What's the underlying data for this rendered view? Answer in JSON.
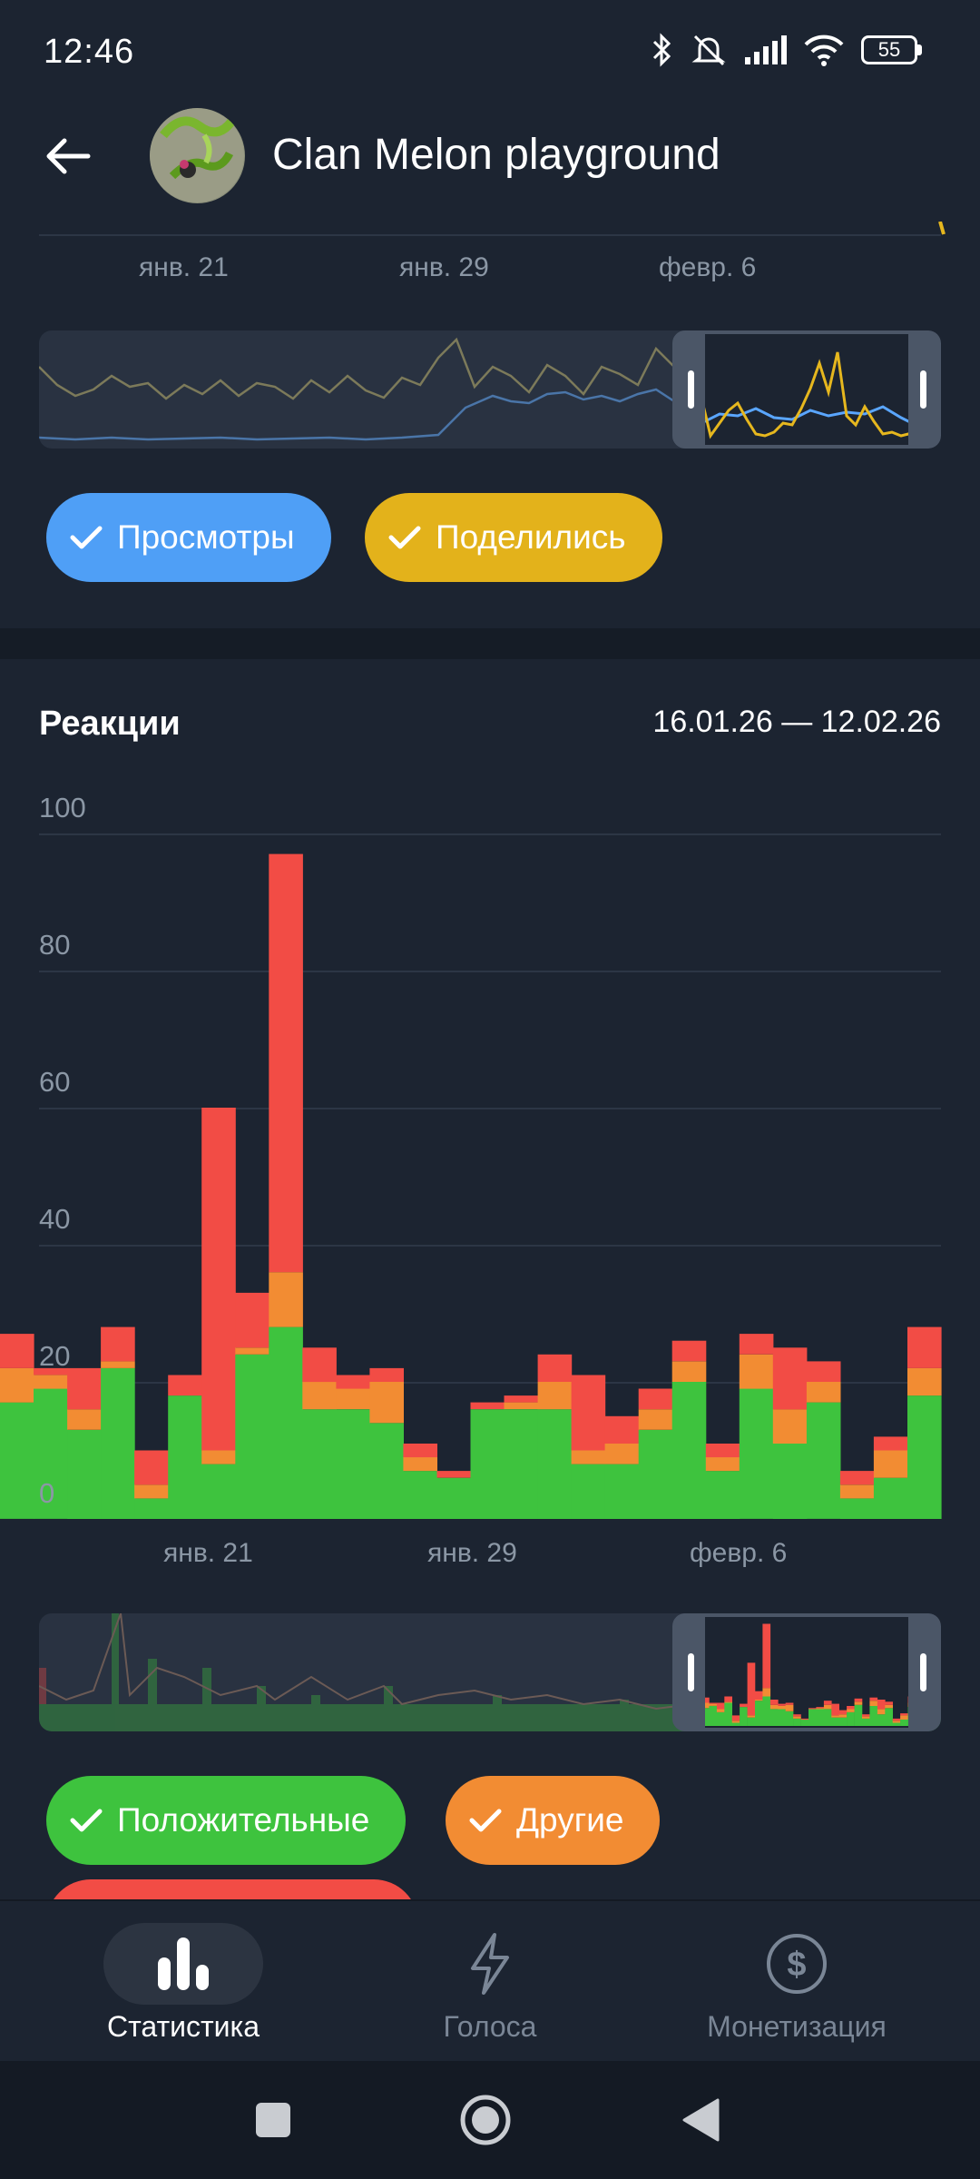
{
  "status_bar": {
    "time": "12:46",
    "battery": "55"
  },
  "header": {
    "title": "Clan Melon playground"
  },
  "views_chart": {
    "x_labels": [
      "янв. 21",
      "янв. 29",
      "февр. 6"
    ],
    "series_colors": {
      "views": "#5aa6ff",
      "shares": "#e6b71e"
    },
    "toggles": [
      {
        "label": "Просмотры",
        "color": "#4f9ff6",
        "checked": true
      },
      {
        "label": "Поделились",
        "color": "#e3b21b",
        "checked": true
      }
    ]
  },
  "reactions": {
    "title": "Реакции",
    "date_range": "16.01.26 — 12.02.26",
    "toggles": [
      {
        "label": "Положительные",
        "color": "#3ec33e",
        "checked": true
      },
      {
        "label": "Другие",
        "color": "#f28c33",
        "checked": true
      },
      {
        "label": "Отрицательные",
        "color": "#f24c45",
        "checked": true
      }
    ]
  },
  "chart_data": {
    "type": "bar",
    "stacked": true,
    "title": "Реакции",
    "y_ticks": [
      "0",
      "20",
      "40",
      "60",
      "80",
      "100"
    ],
    "ylim": [
      0,
      100
    ],
    "x_tick_labels": [
      "янв. 21",
      "янв. 29",
      "февр. 6"
    ],
    "categories": [
      "16.01",
      "17.01",
      "18.01",
      "19.01",
      "20.01",
      "21.01",
      "22.01",
      "23.01",
      "24.01",
      "25.01",
      "26.01",
      "27.01",
      "28.01",
      "29.01",
      "30.01",
      "31.01",
      "01.02",
      "02.02",
      "03.02",
      "04.02",
      "05.02",
      "06.02",
      "07.02",
      "08.02",
      "09.02",
      "10.02",
      "11.02",
      "12.02"
    ],
    "series": [
      {
        "name": "Положительные",
        "color": "#3ec33e",
        "values": [
          17,
          19,
          13,
          22,
          3,
          18,
          8,
          24,
          28,
          16,
          16,
          14,
          7,
          6,
          16,
          16,
          16,
          8,
          8,
          13,
          20,
          7,
          19,
          11,
          17,
          3,
          6,
          18
        ]
      },
      {
        "name": "Другие",
        "color": "#f28c33",
        "values": [
          5,
          2,
          3,
          1,
          2,
          0,
          2,
          1,
          8,
          4,
          3,
          6,
          2,
          0,
          0,
          1,
          4,
          2,
          3,
          3,
          3,
          2,
          5,
          5,
          3,
          2,
          4,
          4
        ]
      },
      {
        "name": "Отрицательные",
        "color": "#f24c45",
        "values": [
          5,
          1,
          6,
          5,
          5,
          3,
          50,
          8,
          61,
          5,
          2,
          2,
          2,
          1,
          1,
          1,
          4,
          11,
          4,
          3,
          3,
          2,
          3,
          9,
          3,
          2,
          2,
          6
        ]
      }
    ]
  },
  "bottom_nav": {
    "items": [
      {
        "label": "Статистика",
        "icon": "bar-chart-icon",
        "active": true
      },
      {
        "label": "Голоса",
        "icon": "lightning-icon",
        "active": false
      },
      {
        "label": "Монетизация",
        "icon": "dollar-circle-icon",
        "active": false
      }
    ]
  },
  "system_nav": {
    "buttons": [
      "recents-square-icon",
      "home-circle-icon",
      "back-triangle-icon"
    ]
  }
}
